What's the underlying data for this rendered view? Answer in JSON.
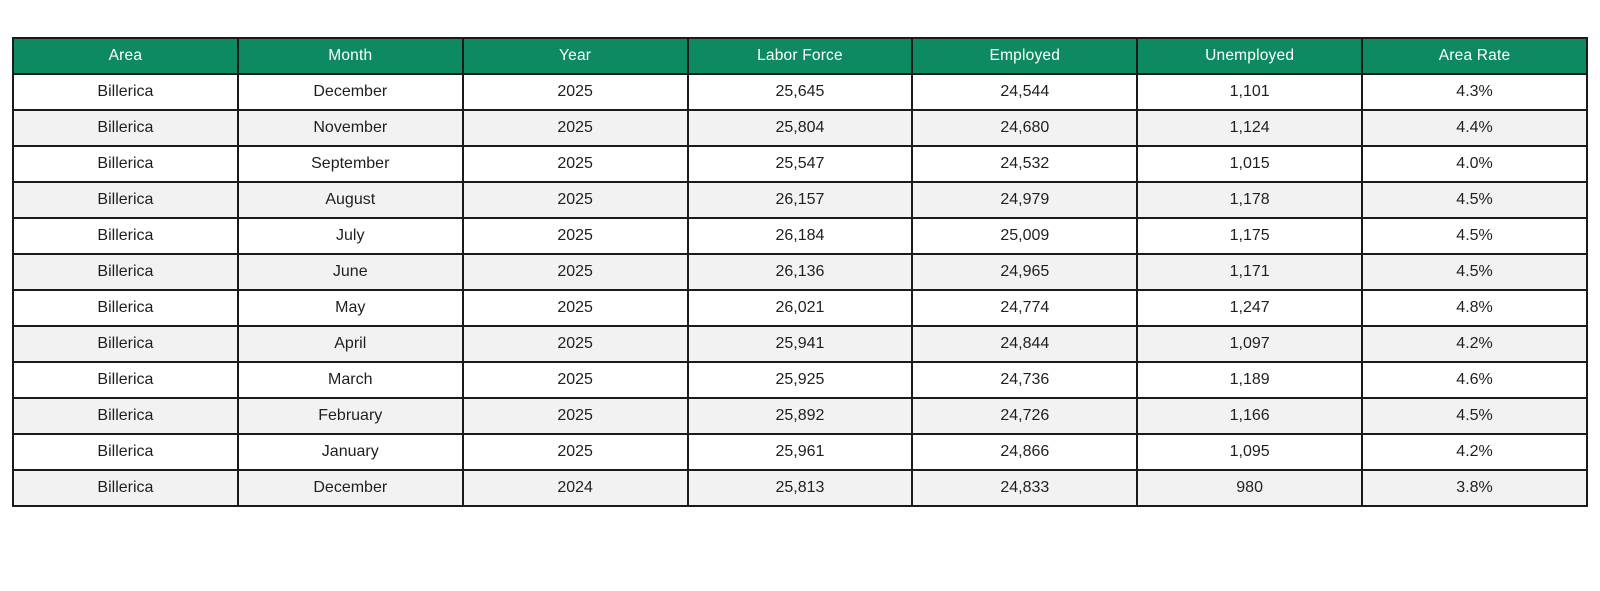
{
  "chart_data": {
    "type": "table",
    "columns": [
      "Area",
      "Month",
      "Year",
      "Labor Force",
      "Employed",
      "Unemployed",
      "Area Rate"
    ],
    "rows": [
      [
        "Billerica",
        "December",
        "2025",
        "25,645",
        "24,544",
        "1,101",
        "4.3%"
      ],
      [
        "Billerica",
        "November",
        "2025",
        "25,804",
        "24,680",
        "1,124",
        "4.4%"
      ],
      [
        "Billerica",
        "September",
        "2025",
        "25,547",
        "24,532",
        "1,015",
        "4.0%"
      ],
      [
        "Billerica",
        "August",
        "2025",
        "26,157",
        "24,979",
        "1,178",
        "4.5%"
      ],
      [
        "Billerica",
        "July",
        "2025",
        "26,184",
        "25,009",
        "1,175",
        "4.5%"
      ],
      [
        "Billerica",
        "June",
        "2025",
        "26,136",
        "24,965",
        "1,171",
        "4.5%"
      ],
      [
        "Billerica",
        "May",
        "2025",
        "26,021",
        "24,774",
        "1,247",
        "4.8%"
      ],
      [
        "Billerica",
        "April",
        "2025",
        "25,941",
        "24,844",
        "1,097",
        "4.2%"
      ],
      [
        "Billerica",
        "March",
        "2025",
        "25,925",
        "24,736",
        "1,189",
        "4.6%"
      ],
      [
        "Billerica",
        "February",
        "2025",
        "25,892",
        "24,726",
        "1,166",
        "4.5%"
      ],
      [
        "Billerica",
        "January",
        "2025",
        "25,961",
        "24,866",
        "1,095",
        "4.2%"
      ],
      [
        "Billerica",
        "December",
        "2024",
        "25,813",
        "24,833",
        "980",
        "3.8%"
      ]
    ]
  },
  "style": {
    "header_bg": "#0d8a61",
    "header_text": "#ffffff",
    "row_alt_bg": "#f2f2f2",
    "border_color": "#1a1a1a"
  }
}
